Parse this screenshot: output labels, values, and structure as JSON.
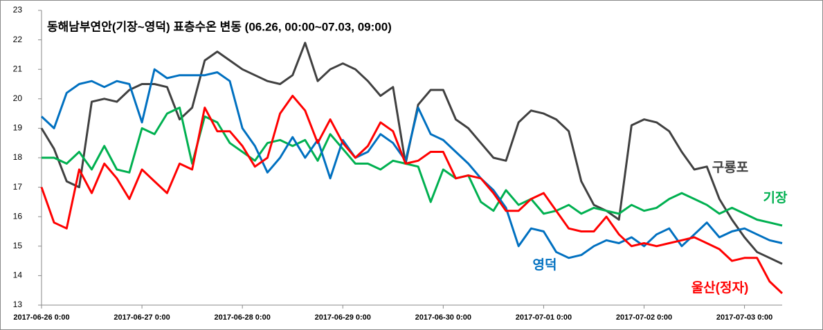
{
  "chart_data": {
    "type": "line",
    "title": "동해남부연안(기장~영덕) 표층수온 변동 (06.26, 00:00~07.03, 09:00)",
    "x": [
      "2017-06-26 0:00",
      "2017-06-26 3:00",
      "2017-06-26 6:00",
      "2017-06-26 9:00",
      "2017-06-26 12:00",
      "2017-06-26 15:00",
      "2017-06-26 18:00",
      "2017-06-26 21:00",
      "2017-06-27 0:00",
      "2017-06-27 3:00",
      "2017-06-27 6:00",
      "2017-06-27 9:00",
      "2017-06-27 12:00",
      "2017-06-27 15:00",
      "2017-06-27 18:00",
      "2017-06-27 21:00",
      "2017-06-28 0:00",
      "2017-06-28 3:00",
      "2017-06-28 6:00",
      "2017-06-28 9:00",
      "2017-06-28 12:00",
      "2017-06-28 15:00",
      "2017-06-28 18:00",
      "2017-06-28 21:00",
      "2017-06-29 0:00",
      "2017-06-29 3:00",
      "2017-06-29 6:00",
      "2017-06-29 9:00",
      "2017-06-29 12:00",
      "2017-06-29 15:00",
      "2017-06-29 18:00",
      "2017-06-29 21:00",
      "2017-06-30 0:00",
      "2017-06-30 3:00",
      "2017-06-30 6:00",
      "2017-06-30 9:00",
      "2017-06-30 12:00",
      "2017-06-30 15:00",
      "2017-06-30 18:00",
      "2017-06-30 21:00",
      "2017-07-01 0:00",
      "2017-07-01 3:00",
      "2017-07-01 6:00",
      "2017-07-01 9:00",
      "2017-07-01 12:00",
      "2017-07-01 15:00",
      "2017-07-01 18:00",
      "2017-07-01 21:00",
      "2017-07-02 0:00",
      "2017-07-02 3:00",
      "2017-07-02 6:00",
      "2017-07-02 9:00",
      "2017-07-02 12:00",
      "2017-07-02 15:00",
      "2017-07-02 18:00",
      "2017-07-02 21:00",
      "2017-07-03 0:00",
      "2017-07-03 3:00",
      "2017-07-03 6:00",
      "2017-07-03 9:00"
    ],
    "series": [
      {
        "name": "구룡포",
        "color": "#404040",
        "values": [
          19.0,
          18.3,
          17.2,
          17.0,
          19.9,
          20.0,
          19.9,
          20.3,
          20.5,
          20.5,
          20.4,
          19.3,
          19.7,
          21.3,
          21.6,
          21.3,
          21.0,
          20.8,
          20.6,
          20.5,
          20.8,
          21.9,
          20.6,
          21.0,
          21.2,
          21.0,
          20.6,
          20.1,
          20.4,
          17.8,
          19.8,
          20.3,
          20.3,
          19.3,
          19.0,
          18.5,
          18.0,
          17.9,
          19.2,
          19.6,
          19.5,
          19.3,
          18.9,
          17.2,
          16.4,
          16.2,
          15.9,
          19.1,
          19.3,
          19.2,
          18.9,
          18.2,
          17.6,
          17.7,
          16.6,
          15.9,
          15.3,
          14.8,
          14.6,
          14.4
        ]
      },
      {
        "name": "기장",
        "color": "#00b050",
        "values": [
          18.0,
          18.0,
          17.8,
          18.2,
          17.6,
          18.4,
          17.6,
          17.5,
          19.0,
          18.8,
          19.5,
          19.7,
          17.8,
          19.4,
          19.2,
          18.5,
          18.2,
          17.9,
          18.5,
          18.6,
          18.4,
          18.6,
          17.9,
          18.8,
          18.3,
          17.8,
          17.8,
          17.6,
          17.9,
          17.8,
          17.7,
          16.5,
          17.6,
          17.3,
          17.4,
          16.5,
          16.2,
          16.9,
          16.4,
          16.6,
          16.1,
          16.2,
          16.4,
          16.1,
          16.3,
          16.2,
          16.1,
          16.4,
          16.2,
          16.3,
          16.6,
          16.8,
          16.6,
          16.4,
          16.1,
          16.3,
          16.1,
          15.9,
          15.8,
          15.7
        ]
      },
      {
        "name": "영덕",
        "color": "#0070c0",
        "values": [
          19.4,
          19.0,
          20.2,
          20.5,
          20.6,
          20.4,
          20.6,
          20.5,
          19.2,
          21.0,
          20.7,
          20.8,
          20.8,
          20.8,
          20.9,
          20.6,
          19.0,
          18.4,
          17.5,
          18.0,
          18.7,
          18.0,
          18.6,
          17.3,
          18.6,
          18.0,
          18.2,
          18.8,
          18.5,
          17.9,
          19.7,
          18.8,
          18.6,
          18.2,
          17.8,
          17.3,
          16.9,
          16.3,
          15.0,
          15.6,
          15.5,
          14.8,
          14.6,
          14.7,
          15.0,
          15.2,
          15.1,
          15.3,
          15.0,
          15.4,
          15.6,
          15.0,
          15.4,
          15.8,
          15.3,
          15.5,
          15.6,
          15.4,
          15.2,
          15.1
        ]
      },
      {
        "name": "울산(정자)",
        "color": "#ff0000",
        "values": [
          17.0,
          15.8,
          15.6,
          17.6,
          16.8,
          17.8,
          17.3,
          16.6,
          17.6,
          17.2,
          16.8,
          17.8,
          17.6,
          19.7,
          18.9,
          18.9,
          18.4,
          17.7,
          18.0,
          19.5,
          20.1,
          19.6,
          18.5,
          19.3,
          18.5,
          18.0,
          18.4,
          19.2,
          18.9,
          17.8,
          17.9,
          18.2,
          18.2,
          17.3,
          17.4,
          17.3,
          16.8,
          16.2,
          16.2,
          16.6,
          16.8,
          16.2,
          15.6,
          15.5,
          15.5,
          16.0,
          15.4,
          15.0,
          15.1,
          15.0,
          15.1,
          15.2,
          15.3,
          15.1,
          14.9,
          14.5,
          14.6,
          14.6,
          13.8,
          13.4
        ]
      }
    ],
    "xlim": [
      "2017-06-26 0:00",
      "2017-07-03 9:00"
    ],
    "xticks": [
      "2017-06-26 0:00",
      "2017-06-27 0:00",
      "2017-06-28 0:00",
      "2017-06-29 0:00",
      "2017-06-30 0:00",
      "2017-07-01 0:00",
      "2017-07-02 0:00",
      "2017-07-03 0:00"
    ],
    "ylim": [
      13,
      23
    ],
    "yticks": [
      13,
      14,
      15,
      16,
      17,
      18,
      19,
      20,
      21,
      22,
      23
    ],
    "grid": false
  }
}
